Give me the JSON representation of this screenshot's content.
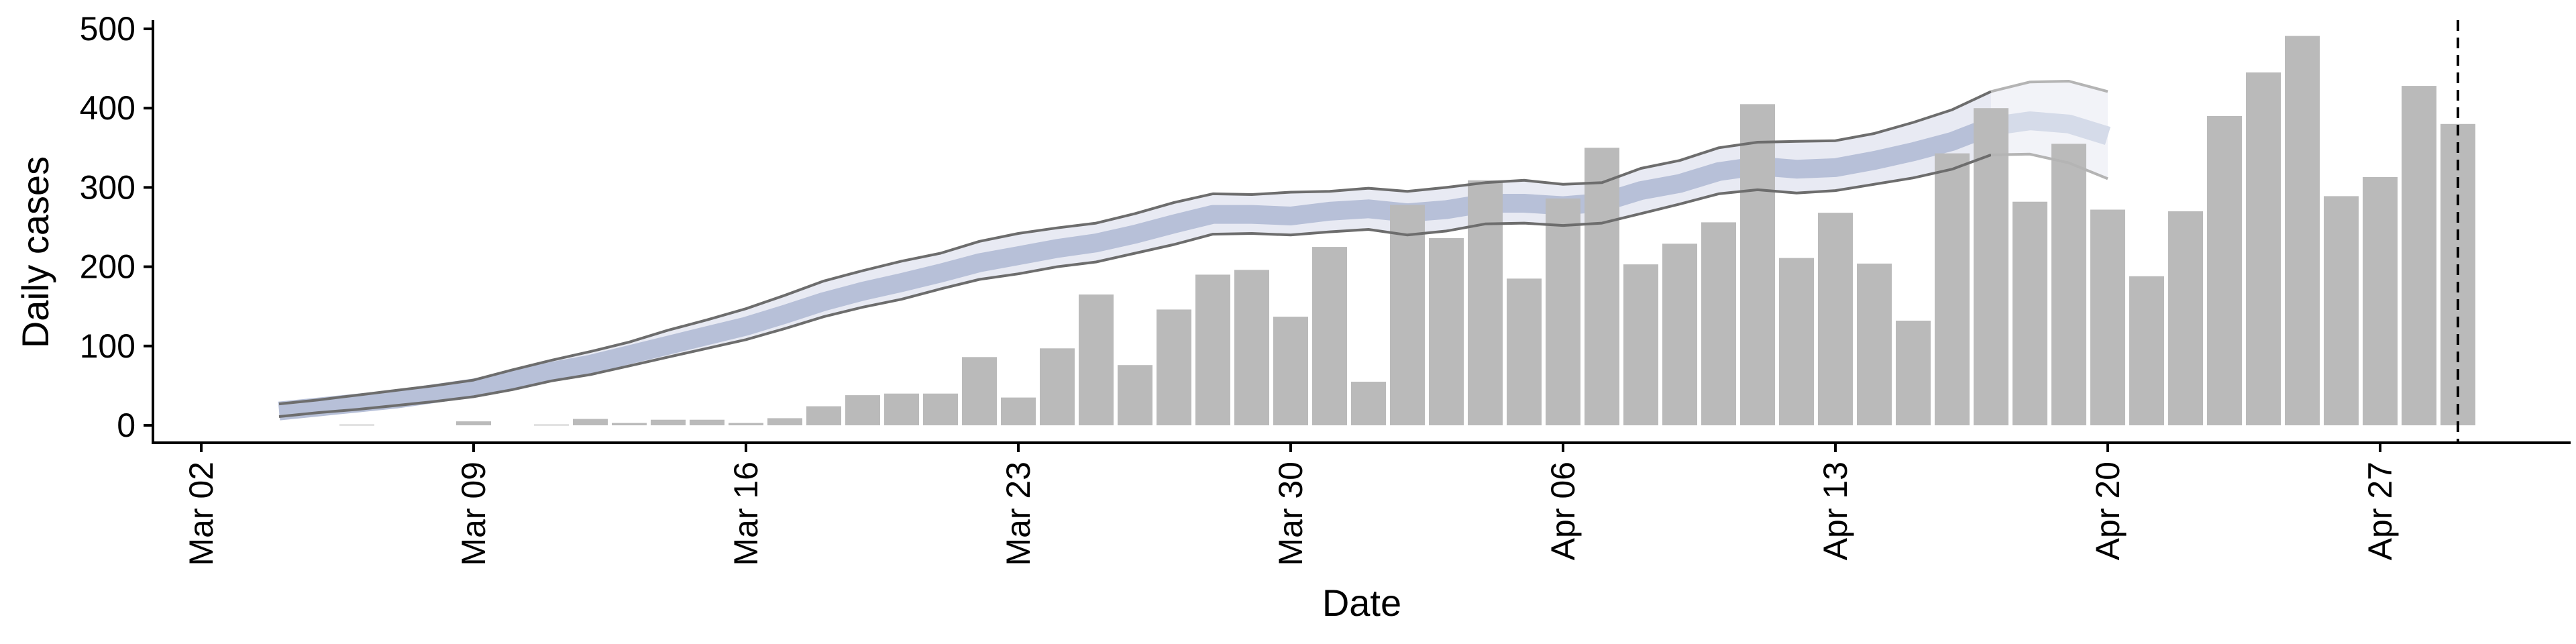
{
  "chart_data": {
    "type": "bar",
    "xlabel": "Date",
    "ylabel": "Daily cases",
    "ylim": [
      -22,
      520
    ],
    "yticks": [
      0,
      100,
      200,
      300,
      400,
      500
    ],
    "xticks": [
      "Mar 02",
      "Mar 09",
      "Mar 16",
      "Mar 23",
      "Mar 30",
      "Apr 06",
      "Apr 13",
      "Apr 20",
      "Apr 27"
    ],
    "start_date": "Mar 02",
    "cases": [
      {
        "x": "Mar 06",
        "y": 1
      },
      {
        "x": "Mar 09",
        "y": 5
      },
      {
        "x": "Mar 11",
        "y": 1
      },
      {
        "x": "Mar 12",
        "y": 8
      },
      {
        "x": "Mar 13",
        "y": 3
      },
      {
        "x": "Mar 14",
        "y": 7
      },
      {
        "x": "Mar 15",
        "y": 7
      },
      {
        "x": "Mar 16",
        "y": 3
      },
      {
        "x": "Mar 17",
        "y": 9
      },
      {
        "x": "Mar 18",
        "y": 24
      },
      {
        "x": "Mar 19",
        "y": 38
      },
      {
        "x": "Mar 20",
        "y": 40
      },
      {
        "x": "Mar 21",
        "y": 40
      },
      {
        "x": "Mar 22",
        "y": 86
      },
      {
        "x": "Mar 23",
        "y": 35
      },
      {
        "x": "Mar 24",
        "y": 97
      },
      {
        "x": "Mar 25",
        "y": 165
      },
      {
        "x": "Mar 26",
        "y": 76
      },
      {
        "x": "Mar 27",
        "y": 146
      },
      {
        "x": "Mar 28",
        "y": 190
      },
      {
        "x": "Mar 29",
        "y": 196
      },
      {
        "x": "Mar 30",
        "y": 137
      },
      {
        "x": "Mar 31",
        "y": 225
      },
      {
        "x": "Apr 01",
        "y": 55
      },
      {
        "x": "Apr 02",
        "y": 278
      },
      {
        "x": "Apr 03",
        "y": 236
      },
      {
        "x": "Apr 04",
        "y": 309
      },
      {
        "x": "Apr 05",
        "y": 185
      },
      {
        "x": "Apr 06",
        "y": 286
      },
      {
        "x": "Apr 07",
        "y": 350
      },
      {
        "x": "Apr 08",
        "y": 203
      },
      {
        "x": "Apr 09",
        "y": 229
      },
      {
        "x": "Apr 10",
        "y": 256
      },
      {
        "x": "Apr 11",
        "y": 405
      },
      {
        "x": "Apr 12",
        "y": 211
      },
      {
        "x": "Apr 13",
        "y": 268
      },
      {
        "x": "Apr 14",
        "y": 204
      },
      {
        "x": "Apr 15",
        "y": 132
      },
      {
        "x": "Apr 16",
        "y": 343
      },
      {
        "x": "Apr 17",
        "y": 400
      },
      {
        "x": "Apr 18",
        "y": 282
      },
      {
        "x": "Apr 19",
        "y": 355
      },
      {
        "x": "Apr 20",
        "y": 272
      },
      {
        "x": "Apr 21",
        "y": 188
      },
      {
        "x": "Apr 22",
        "y": 270
      },
      {
        "x": "Apr 23",
        "y": 390
      },
      {
        "x": "Apr 24",
        "y": 445
      },
      {
        "x": "Apr 25",
        "y": 491
      },
      {
        "x": "Apr 26",
        "y": 289
      },
      {
        "x": "Apr 27",
        "y": 313
      },
      {
        "x": "Apr 28",
        "y": 428
      },
      {
        "x": "Apr 29",
        "y": 380
      }
    ],
    "estimate": [
      {
        "x": "Mar 04",
        "lower": 11,
        "median": 18,
        "upper": 27
      },
      {
        "x": "Mar 05",
        "lower": 16,
        "median": 23,
        "upper": 32
      },
      {
        "x": "Mar 06",
        "lower": 20,
        "median": 28,
        "upper": 38
      },
      {
        "x": "Mar 07",
        "lower": 25,
        "median": 33,
        "upper": 44
      },
      {
        "x": "Mar 08",
        "lower": 30,
        "median": 40,
        "upper": 50
      },
      {
        "x": "Mar 09",
        "lower": 36,
        "median": 47,
        "upper": 57
      },
      {
        "x": "Mar 10",
        "lower": 45,
        "median": 57,
        "upper": 70
      },
      {
        "x": "Mar 11",
        "lower": 56,
        "median": 68,
        "upper": 82
      },
      {
        "x": "Mar 12",
        "lower": 64,
        "median": 77,
        "upper": 93
      },
      {
        "x": "Mar 13",
        "lower": 75,
        "median": 89,
        "upper": 105
      },
      {
        "x": "Mar 14",
        "lower": 86,
        "median": 101,
        "upper": 120
      },
      {
        "x": "Mar 15",
        "lower": 97,
        "median": 113,
        "upper": 133
      },
      {
        "x": "Mar 16",
        "lower": 108,
        "median": 125,
        "upper": 147
      },
      {
        "x": "Mar 17",
        "lower": 122,
        "median": 140,
        "upper": 164
      },
      {
        "x": "Mar 18",
        "lower": 137,
        "median": 156,
        "upper": 182
      },
      {
        "x": "Mar 19",
        "lower": 149,
        "median": 169,
        "upper": 195
      },
      {
        "x": "Mar 20",
        "lower": 159,
        "median": 180,
        "upper": 207
      },
      {
        "x": "Mar 21",
        "lower": 172,
        "median": 192,
        "upper": 217
      },
      {
        "x": "Mar 22",
        "lower": 184,
        "median": 205,
        "upper": 232
      },
      {
        "x": "Mar 23",
        "lower": 191,
        "median": 214,
        "upper": 242
      },
      {
        "x": "Mar 24",
        "lower": 200,
        "median": 223,
        "upper": 249
      },
      {
        "x": "Mar 25",
        "lower": 206,
        "median": 230,
        "upper": 255
      },
      {
        "x": "Mar 26",
        "lower": 217,
        "median": 241,
        "upper": 267
      },
      {
        "x": "Mar 27",
        "lower": 228,
        "median": 254,
        "upper": 281
      },
      {
        "x": "Mar 28",
        "lower": 241,
        "median": 266,
        "upper": 292
      },
      {
        "x": "Mar 29",
        "lower": 242,
        "median": 266,
        "upper": 291
      },
      {
        "x": "Mar 30",
        "lower": 240,
        "median": 264,
        "upper": 294
      },
      {
        "x": "Mar 31",
        "lower": 244,
        "median": 270,
        "upper": 295
      },
      {
        "x": "Apr 01",
        "lower": 247,
        "median": 273,
        "upper": 299
      },
      {
        "x": "Apr 02",
        "lower": 240,
        "median": 268,
        "upper": 295
      },
      {
        "x": "Apr 03",
        "lower": 245,
        "median": 272,
        "upper": 300
      },
      {
        "x": "Apr 04",
        "lower": 254,
        "median": 280,
        "upper": 306
      },
      {
        "x": "Apr 05",
        "lower": 255,
        "median": 280,
        "upper": 309
      },
      {
        "x": "Apr 06",
        "lower": 252,
        "median": 277,
        "upper": 304
      },
      {
        "x": "Apr 07",
        "lower": 255,
        "median": 281,
        "upper": 306
      },
      {
        "x": "Apr 08",
        "lower": 267,
        "median": 296,
        "upper": 324
      },
      {
        "x": "Apr 09",
        "lower": 279,
        "median": 305,
        "upper": 334
      },
      {
        "x": "Apr 10",
        "lower": 292,
        "median": 320,
        "upper": 350
      },
      {
        "x": "Apr 11",
        "lower": 297,
        "median": 327,
        "upper": 357
      },
      {
        "x": "Apr 12",
        "lower": 293,
        "median": 323,
        "upper": 358
      },
      {
        "x": "Apr 13",
        "lower": 296,
        "median": 325,
        "upper": 359
      },
      {
        "x": "Apr 14",
        "lower": 304,
        "median": 334,
        "upper": 368
      },
      {
        "x": "Apr 15",
        "lower": 312,
        "median": 345,
        "upper": 382
      },
      {
        "x": "Apr 16",
        "lower": 323,
        "median": 358,
        "upper": 398
      },
      {
        "x": "Apr 17",
        "lower": 341,
        "median": 377,
        "upper": 421
      },
      {
        "x": "Apr 18",
        "lower": 342,
        "median": 384,
        "upper": 433
      },
      {
        "x": "Apr 19",
        "lower": 331,
        "median": 380,
        "upper": 434
      },
      {
        "x": "Apr 20",
        "lower": 311,
        "median": 365,
        "upper": 421
      }
    ],
    "forecast_from": "Apr 17",
    "vline": "Apr 29",
    "colors": {
      "bars": "#bababa",
      "band": "#e8eaf3",
      "band_forecast": "#f2f3f8",
      "median": "#b7c0d8",
      "median_forecast": "#d5dbe9",
      "bounds": "#6d6d6d",
      "bounds_forecast": "#b4b4b4",
      "axis": "#000000"
    }
  }
}
